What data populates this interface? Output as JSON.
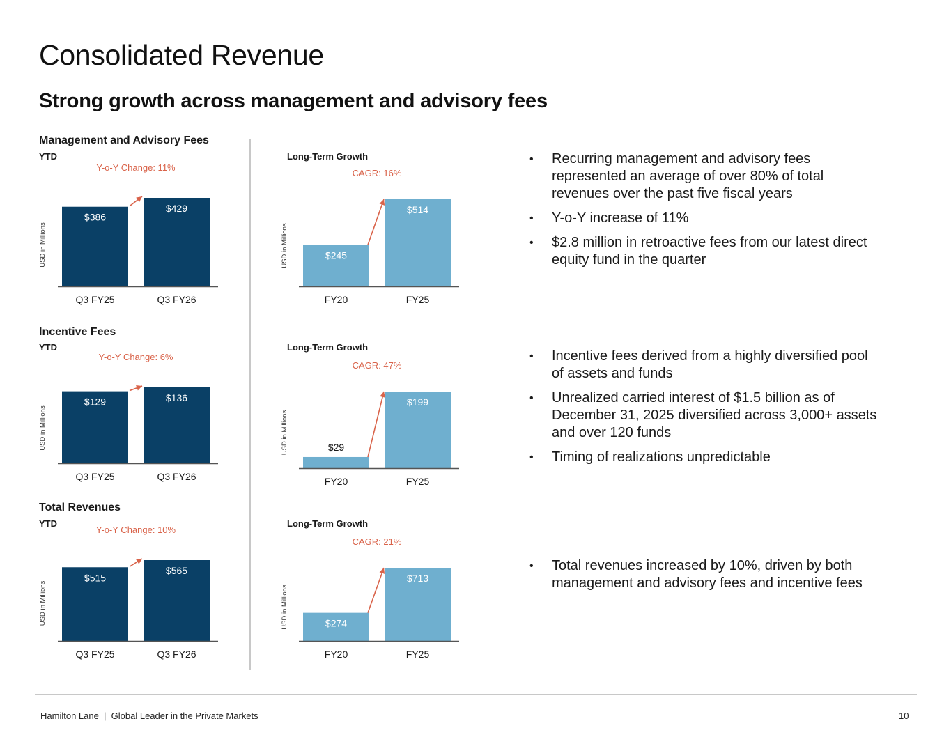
{
  "header": {
    "title": "Consolidated Revenue",
    "subtitle": "Strong growth across management and advisory fees"
  },
  "sections": [
    {
      "title": "Management and Advisory Fees",
      "ytd_label": "YTD",
      "long_term_label": "Long-Term Growth"
    },
    {
      "title": "Incentive Fees",
      "ytd_label": "YTD",
      "long_term_label": "Long-Term Growth"
    },
    {
      "title": "Total Revenues",
      "ytd_label": "YTD",
      "long_term_label": "Long-Term Growth"
    }
  ],
  "colors": {
    "ytd_bar": "#0a4066",
    "long_term_bar": "#6fafcf",
    "change_text": "#d9634a",
    "axis": "#555555",
    "bar_label_on_dark": "#ffffff",
    "bar_label_on_light": "#1a1a1a"
  },
  "chart_data": [
    {
      "id": "mgmt-ytd",
      "type": "bar",
      "categories": [
        "Q3 FY25",
        "Q3 FY26"
      ],
      "values": [
        386,
        429
      ],
      "labels": [
        "$386",
        "$429"
      ],
      "annotation": "Y-o-Y Change: 11%",
      "ylabel": "USD in Millions",
      "ylim": [
        0,
        429
      ]
    },
    {
      "id": "mgmt-lt",
      "type": "bar",
      "categories": [
        "FY20",
        "FY25"
      ],
      "values": [
        245,
        514
      ],
      "labels": [
        "$245",
        "$514"
      ],
      "annotation": "CAGR: 16%",
      "ylabel": "USD in Millions",
      "ylim": [
        0,
        514
      ]
    },
    {
      "id": "incentive-ytd",
      "type": "bar",
      "categories": [
        "Q3 FY25",
        "Q3 FY26"
      ],
      "values": [
        129,
        136
      ],
      "labels": [
        "$129",
        "$136"
      ],
      "annotation": "Y-o-Y Change: 6%",
      "ylabel": "USD in Millions",
      "ylim": [
        0,
        136
      ]
    },
    {
      "id": "incentive-lt",
      "type": "bar",
      "categories": [
        "FY20",
        "FY25"
      ],
      "values": [
        29,
        199
      ],
      "labels": [
        "$29",
        "$199"
      ],
      "annotation": "CAGR: 47%",
      "ylabel": "USD in Millions",
      "ylim": [
        0,
        199
      ]
    },
    {
      "id": "total-ytd",
      "type": "bar",
      "categories": [
        "Q3 FY25",
        "Q3 FY26"
      ],
      "values": [
        515,
        565
      ],
      "labels": [
        "$515",
        "$565"
      ],
      "annotation": "Y-o-Y Change: 10%",
      "ylabel": "USD in Millions",
      "ylim": [
        0,
        565
      ]
    },
    {
      "id": "total-lt",
      "type": "bar",
      "categories": [
        "FY20",
        "FY25"
      ],
      "values": [
        274,
        713
      ],
      "labels": [
        "$274",
        "$713"
      ],
      "annotation": "CAGR: 21%",
      "ylabel": "USD in Millions",
      "ylim": [
        0,
        713
      ]
    }
  ],
  "bullets": [
    [
      "Recurring management and advisory fees represented an average of over 80% of total revenues over the past five fiscal years",
      "Y-o-Y increase of 11%",
      "$2.8 million in retroactive fees from our latest direct equity fund in the quarter"
    ],
    [
      "Incentive fees derived from a highly diversified pool of assets and funds",
      "Unrealized carried interest of $1.5 billion as of December 31, 2025 diversified across 3,000+ assets and over 120 funds",
      "Timing of realizations unpredictable"
    ],
    [
      "Total revenues increased by 10%, driven by both management and advisory fees and incentive fees"
    ]
  ],
  "bullet_char": "•",
  "footer": {
    "text": "Hamilton Lane  |  Global Leader in the Private Markets",
    "page_number": "10"
  }
}
